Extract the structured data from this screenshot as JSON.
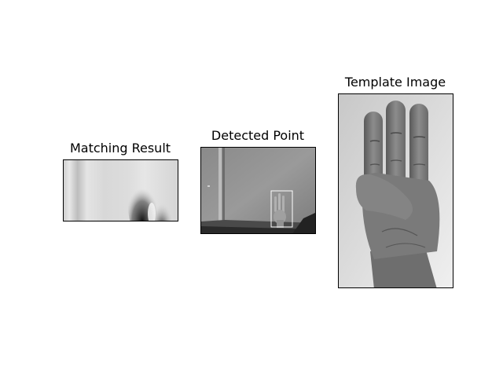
{
  "panels": [
    {
      "title": "Matching Result"
    },
    {
      "title": "Detected Point"
    },
    {
      "title": "Template Image"
    }
  ]
}
